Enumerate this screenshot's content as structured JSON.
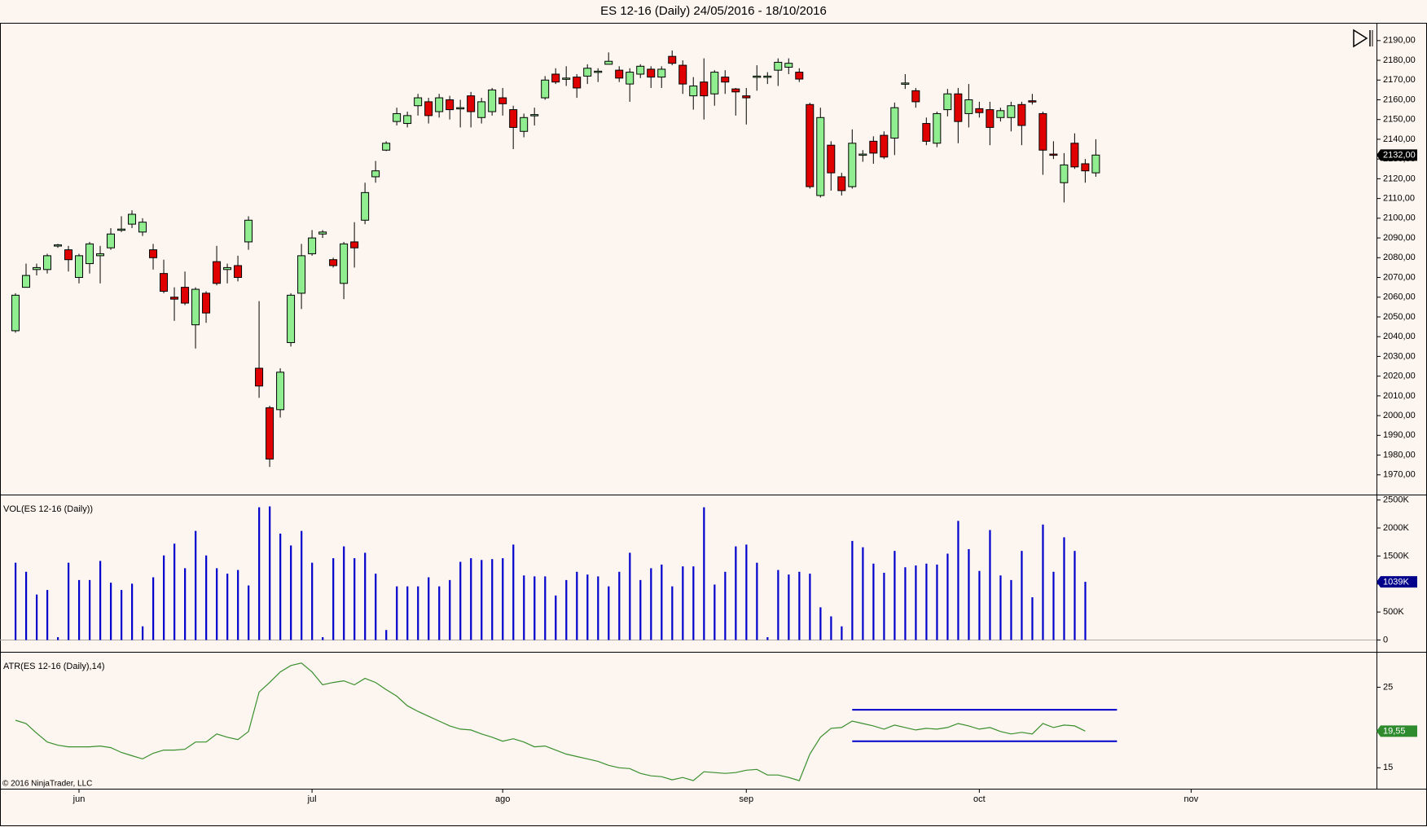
{
  "chart_data": [
    {
      "type": "candlestick",
      "title": "ES 12-16 (Daily)  24/05/2016 - 18/10/2016",
      "up_color": "#90ee90",
      "down_color": "#e00000",
      "xlim": [
        -1.46,
        128.5
      ],
      "ylim": [
        1960,
        2199
      ],
      "yticks": [
        {
          "value": 1970,
          "label": "1970,00"
        },
        {
          "value": 1980,
          "label": "1980,00"
        },
        {
          "value": 1990,
          "label": "1990,00"
        },
        {
          "value": 2000,
          "label": "2000,00"
        },
        {
          "value": 2010,
          "label": "2010,00"
        },
        {
          "value": 2020,
          "label": "2020,00"
        },
        {
          "value": 2030,
          "label": "2030,00"
        },
        {
          "value": 2040,
          "label": "2040,00"
        },
        {
          "value": 2050,
          "label": "2050,00"
        },
        {
          "value": 2060,
          "label": "2060,00"
        },
        {
          "value": 2070,
          "label": "2070,00"
        },
        {
          "value": 2080,
          "label": "2080,00"
        },
        {
          "value": 2090,
          "label": "2090,00"
        },
        {
          "value": 2100,
          "label": "2100,00"
        },
        {
          "value": 2110,
          "label": "2110,00"
        },
        {
          "value": 2120,
          "label": "2120,00"
        },
        {
          "value": 2130,
          "label": "2130,00"
        },
        {
          "value": 2140,
          "label": "2140,00"
        },
        {
          "value": 2150,
          "label": "2150,00"
        },
        {
          "value": 2160,
          "label": "2160,00"
        },
        {
          "value": 2170,
          "label": "2170,00"
        },
        {
          "value": 2180,
          "label": "2180,00"
        },
        {
          "value": 2190,
          "label": "2190,00"
        }
      ],
      "open": [
        2043,
        2065,
        2074,
        2074,
        2086,
        2084,
        2070,
        2077,
        2081,
        2085,
        2094,
        2097,
        2093,
        2084,
        2072,
        2060,
        2065,
        2046,
        2062,
        2078,
        2074,
        2076,
        2088,
        2024,
        2004,
        2003,
        2037,
        2062,
        2082,
        2092,
        2079,
        2067,
        2088,
        2099,
        2121,
        2134.5,
        2149,
        2148,
        2157,
        2159,
        2154,
        2160,
        2156,
        2162,
        2151,
        2154,
        2161,
        2155,
        2144,
        2152,
        2161,
        2173,
        2171,
        2171.5,
        2172,
        2174,
        2178,
        2175,
        2168,
        2173,
        2175.5,
        2171.5,
        2182,
        2177.5,
        2162,
        2169,
        2163,
        2171.5,
        2165.5,
        2162,
        2172,
        2172,
        2175,
        2176.5,
        2174,
        2157.6,
        2111.5,
        2137,
        2121,
        2116,
        2132,
        2139,
        2142,
        2140.6,
        2168,
        2164.6,
        2148,
        2138,
        2155,
        2163,
        2153,
        2155.5,
        2155,
        2151,
        2151,
        2157.6,
        2159.5,
        2153,
        2132.5,
        2118,
        2138,
        2127.6,
        2123
      ],
      "high": [
        2062,
        2077,
        2077,
        2082,
        2087,
        2086,
        2082,
        2088,
        2086,
        2095,
        2101,
        2104,
        2100,
        2087,
        2079,
        2065,
        2073,
        2065,
        2063,
        2086,
        2077,
        2081,
        2101,
        2058,
        2005,
        2024,
        2062,
        2087,
        2094,
        2094,
        2080,
        2088,
        2098,
        2118,
        2129,
        2139,
        2156,
        2154,
        2163,
        2161,
        2163,
        2162,
        2160,
        2164,
        2161,
        2166,
        2166,
        2157,
        2153,
        2156,
        2172,
        2176,
        2177,
        2173,
        2178,
        2176,
        2184,
        2177,
        2176,
        2178,
        2177,
        2177,
        2185,
        2180,
        2171.5,
        2181,
        2175,
        2175,
        2166,
        2166,
        2177.5,
        2174,
        2181,
        2181,
        2176,
        2158.5,
        2156,
        2139,
        2123,
        2145,
        2134.5,
        2141.5,
        2144,
        2158.6,
        2173,
        2166,
        2151,
        2154,
        2165.5,
        2166,
        2168,
        2159,
        2159,
        2156,
        2159,
        2159,
        2163,
        2154,
        2139,
        2133,
        2143,
        2130,
        2140
      ],
      "low": [
        2042,
        2065,
        2071,
        2072,
        2085,
        2073,
        2067,
        2072,
        2067,
        2084,
        2093,
        2095,
        2091,
        2074,
        2062,
        2048,
        2056,
        2034,
        2047,
        2066,
        2067,
        2068,
        2084,
        2009,
        1974,
        1999,
        2035,
        2054,
        2081,
        2090,
        2075,
        2059,
        2075,
        2097,
        2118,
        2134,
        2147,
        2146,
        2152,
        2148,
        2151,
        2150,
        2146,
        2146,
        2148,
        2152,
        2152,
        2135,
        2141,
        2147,
        2160,
        2168,
        2167,
        2161,
        2168,
        2169,
        2178,
        2169,
        2159,
        2171,
        2166,
        2166,
        2177.5,
        2163,
        2155,
        2150,
        2157,
        2163,
        2152,
        2147.5,
        2164.6,
        2168,
        2167,
        2173,
        2169,
        2115,
        2110.5,
        2114,
        2111.5,
        2115,
        2128.6,
        2127.6,
        2130,
        2132,
        2165.5,
        2156,
        2137,
        2136,
        2151.6,
        2138,
        2146,
        2151,
        2137,
        2149,
        2144,
        2137,
        2157.6,
        2122,
        2130,
        2108,
        2125,
        2118,
        2121
      ],
      "close": [
        2061,
        2071,
        2075,
        2081,
        2086.5,
        2079,
        2081,
        2087,
        2082,
        2092,
        2094.5,
        2102,
        2098,
        2080,
        2063,
        2059,
        2057,
        2064,
        2052,
        2067,
        2075,
        2070,
        2099,
        2015,
        1978,
        2022,
        2061,
        2081,
        2090,
        2093,
        2076,
        2087,
        2085,
        2113,
        2124,
        2138,
        2153,
        2152,
        2161,
        2152,
        2161,
        2155,
        2156,
        2154,
        2159,
        2165,
        2158,
        2146,
        2151,
        2152.5,
        2170,
        2169,
        2171,
        2166,
        2176,
        2174.5,
        2179.5,
        2171,
        2174,
        2177,
        2171.5,
        2175.5,
        2178.5,
        2168,
        2167,
        2162,
        2174,
        2169,
        2164,
        2161,
        2172,
        2172,
        2179,
        2178.5,
        2170.5,
        2116,
        2151,
        2123,
        2114,
        2138,
        2132.5,
        2133,
        2131,
        2156,
        2168.5,
        2159,
        2139,
        2153,
        2163,
        2149,
        2160,
        2153.5,
        2146,
        2154.5,
        2157,
        2147,
        2159,
        2134.5,
        2132,
        2127,
        2126,
        2124,
        2132
      ],
      "last_value": 2132,
      "last_value_label": "2132,00",
      "last_value_color": "#000000"
    },
    {
      "type": "bar",
      "label": "VOL(ES 12-16 (Daily))",
      "color": "#0000cc",
      "xlim": [
        -1.46,
        128.5
      ],
      "ylim": [
        -211,
        2597
      ],
      "yticks": [
        0,
        {
          "value": 500,
          "label": "500K"
        },
        {
          "value": 1000,
          "label": "1000K"
        },
        {
          "value": 1500,
          "label": "1500K"
        },
        {
          "value": 2000,
          "label": "2000K"
        },
        {
          "value": 2500,
          "label": "2500K"
        }
      ],
      "values": [
        1380,
        1218,
        812,
        893,
        50,
        1380,
        1071,
        1071,
        1412,
        1023,
        893,
        1006,
        244,
        1120,
        1510,
        1720,
        1282,
        1948,
        1510,
        1282,
        1185,
        1250,
        974,
        2370,
        2386,
        1900,
        1688,
        1948,
        1380,
        50,
        1461,
        1672,
        1461,
        1558,
        1185,
        179,
        958,
        958,
        958,
        1120,
        958,
        1071,
        1396,
        1461,
        1429,
        1445,
        1461,
        1704,
        1153,
        1136,
        1136,
        795,
        1071,
        1218,
        1169,
        1136,
        958,
        1218,
        1558,
        1071,
        1282,
        1347,
        958,
        1315,
        1315,
        2370,
        990,
        1218,
        1672,
        1704,
        1380,
        50,
        1250,
        1169,
        1218,
        1185,
        584,
        422,
        244,
        1769,
        1656,
        1364,
        1201,
        1591,
        1299,
        1331,
        1364,
        1347,
        1542,
        2127,
        1623,
        1234,
        1964,
        1153,
        1071,
        1591,
        763,
        2062,
        1218,
        1834,
        1591,
        1039,
        null
      ],
      "last_value": 1039,
      "last_value_label": "1039K",
      "last_value_color": "#00008b"
    },
    {
      "type": "line",
      "label": "ATR(ES 12-16 (Daily),14)",
      "color": "#3a8f2e",
      "xlim": [
        -1.46,
        128.5
      ],
      "ylim": [
        12.4,
        29.4
      ],
      "yticks": [
        15,
        25
      ],
      "xticks": [
        {
          "value": 6,
          "label": "jun"
        },
        {
          "value": 28,
          "label": "jul"
        },
        {
          "value": 46,
          "label": "ago"
        },
        {
          "value": 69,
          "label": "sep"
        },
        {
          "value": 91,
          "label": "oct"
        },
        {
          "value": 111,
          "label": "nov"
        }
      ],
      "values": [
        20.9,
        20.5,
        19.3,
        18.2,
        17.8,
        17.6,
        17.6,
        17.6,
        17.7,
        17.5,
        16.9,
        16.5,
        16.1,
        16.8,
        17.2,
        17.2,
        17.3,
        18.2,
        18.2,
        19.2,
        18.8,
        18.5,
        19.5,
        24.4,
        25.6,
        26.9,
        27.7,
        28,
        26.9,
        25.3,
        25.6,
        25.8,
        25.3,
        26.1,
        25.6,
        24.7,
        23.9,
        22.7,
        22.0,
        21.4,
        20.8,
        20.2,
        19.8,
        19.7,
        19.2,
        18.8,
        18.3,
        18.6,
        18.2,
        17.6,
        17.7,
        17.2,
        16.7,
        16.4,
        16.1,
        15.8,
        15.3,
        15.0,
        14.9,
        14.3,
        14.0,
        13.9,
        13.5,
        13.8,
        13.4,
        14.5,
        14.4,
        14.3,
        14.4,
        14.7,
        14.8,
        14.1,
        14.1,
        13.8,
        13.4,
        16.7,
        18.8,
        19.9,
        20.0,
        20.8,
        20.5,
        20.2,
        19.8,
        20.3,
        20.0,
        19.7,
        19.9,
        19.8,
        20.0,
        20.5,
        20.2,
        19.8,
        20.0,
        19.5,
        19.2,
        19.4,
        19.2,
        20.5,
        20.0,
        20.3,
        20.2,
        19.55,
        null
      ],
      "hlines": [
        {
          "value": 22.2,
          "from": 79,
          "to": 104,
          "color": "#0000cc"
        },
        {
          "value": 18.3,
          "from": 79,
          "to": 104,
          "color": "#0000cc"
        }
      ],
      "last_value": 19.55,
      "last_value_label": "19,55",
      "last_value_color": "#2e8b2e",
      "annotation": "© 2016 NinjaTrader, LLC"
    }
  ]
}
